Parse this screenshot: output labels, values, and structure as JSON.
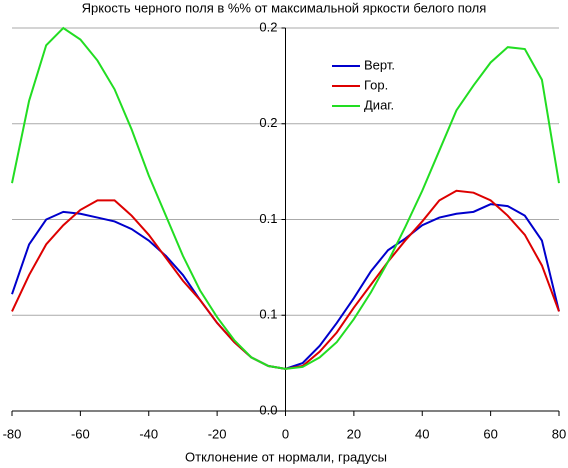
{
  "chart_data": {
    "type": "line",
    "title": "Яркость черного поля в %% от максимальной яркости белого поля",
    "x_label": "Отклонение от нормали, градусы",
    "x": [
      -80,
      -75,
      -70,
      -65,
      -60,
      -55,
      -50,
      -45,
      -40,
      -35,
      -30,
      -25,
      -20,
      -15,
      -10,
      -5,
      0,
      5,
      10,
      15,
      20,
      25,
      30,
      35,
      40,
      45,
      50,
      55,
      60,
      65,
      70,
      75,
      80
    ],
    "series": [
      {
        "name": "Верт.",
        "color": "#0000cc",
        "values": [
          0.061,
          0.087,
          0.1,
          0.104,
          0.103,
          0.101,
          0.099,
          0.095,
          0.089,
          0.081,
          0.071,
          0.058,
          0.046,
          0.036,
          0.028,
          0.0235,
          0.022,
          0.025,
          0.034,
          0.046,
          0.059,
          0.073,
          0.084,
          0.09,
          0.097,
          0.101,
          0.103,
          0.104,
          0.108,
          0.107,
          0.102,
          0.089,
          0.052
        ]
      },
      {
        "name": "Гор.",
        "color": "#dd0000",
        "values": [
          0.052,
          0.071,
          0.087,
          0.097,
          0.105,
          0.11,
          0.11,
          0.102,
          0.092,
          0.08,
          0.068,
          0.058,
          0.046,
          0.036,
          0.028,
          0.0235,
          0.022,
          0.0235,
          0.031,
          0.041,
          0.054,
          0.066,
          0.078,
          0.089,
          0.099,
          0.11,
          0.115,
          0.114,
          0.11,
          0.102,
          0.092,
          0.076,
          0.052
        ]
      },
      {
        "name": "Диаг.",
        "color": "#22dd22",
        "values": [
          0.119,
          0.162,
          0.191,
          0.2,
          0.194,
          0.183,
          0.168,
          0.147,
          0.123,
          0.102,
          0.081,
          0.063,
          0.049,
          0.037,
          0.028,
          0.0235,
          0.022,
          0.023,
          0.028,
          0.036,
          0.048,
          0.062,
          0.078,
          0.096,
          0.115,
          0.136,
          0.157,
          0.17,
          0.182,
          0.19,
          0.189,
          0.173,
          0.119
        ]
      }
    ],
    "xlim": [
      -80,
      80
    ],
    "xticks": [
      -80,
      -60,
      -40,
      -20,
      0,
      20,
      40,
      60,
      80
    ],
    "ylim": [
      0,
      0.2
    ],
    "yticks": [
      {
        "value": 0,
        "label": "0.0"
      },
      {
        "value": 0.05,
        "label": "0.1"
      },
      {
        "value": 0.1,
        "label": "0.1"
      },
      {
        "value": 0.15,
        "label": "0.2"
      },
      {
        "value": 0.2,
        "label": "0.2"
      }
    ],
    "grid": true,
    "legend": "upper right"
  }
}
